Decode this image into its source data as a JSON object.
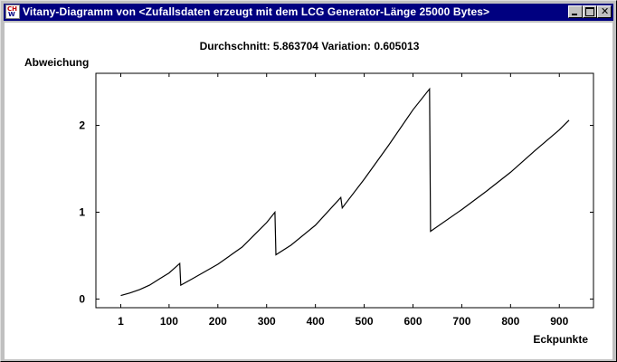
{
  "window": {
    "title": "Vitany-Diagramm von <Zufallsdaten erzeugt mit dem LCG Generator-Länge 25000 Bytes>"
  },
  "chart_data": {
    "type": "line",
    "title": "Durchschnitt: 5.863704 Variation: 0.605013",
    "xlabel": "Eckpunkte",
    "ylabel": "Abweichung",
    "xlim": [
      -50,
      970
    ],
    "ylim": [
      -0.1,
      2.6
    ],
    "xticks": [
      1,
      100,
      200,
      300,
      400,
      500,
      600,
      700,
      800,
      900
    ],
    "yticks": [
      0,
      1,
      2
    ],
    "grid": false,
    "series": [
      {
        "color": "#000000",
        "segments": [
          {
            "x": [
              1,
              20,
              40,
              60,
              80,
              100,
              122
            ],
            "y": [
              0.04,
              0.07,
              0.11,
              0.16,
              0.23,
              0.3,
              0.41
            ]
          },
          {
            "x": [
              124,
              150,
              200,
              250,
              300,
              317
            ],
            "y": [
              0.16,
              0.24,
              0.4,
              0.6,
              0.88,
              1.0
            ]
          },
          {
            "x": [
              319,
              350,
              400,
              452
            ],
            "y": [
              0.51,
              0.62,
              0.85,
              1.17
            ]
          },
          {
            "x": [
              455,
              500,
              550,
              600,
              634
            ],
            "y": [
              1.05,
              1.38,
              1.77,
              2.18,
              2.42
            ]
          },
          {
            "x": [
              636,
              700,
              750,
              800,
              850,
              900,
              920
            ],
            "y": [
              0.78,
              1.03,
              1.24,
              1.46,
              1.71,
              1.95,
              2.06
            ]
          }
        ]
      }
    ]
  }
}
